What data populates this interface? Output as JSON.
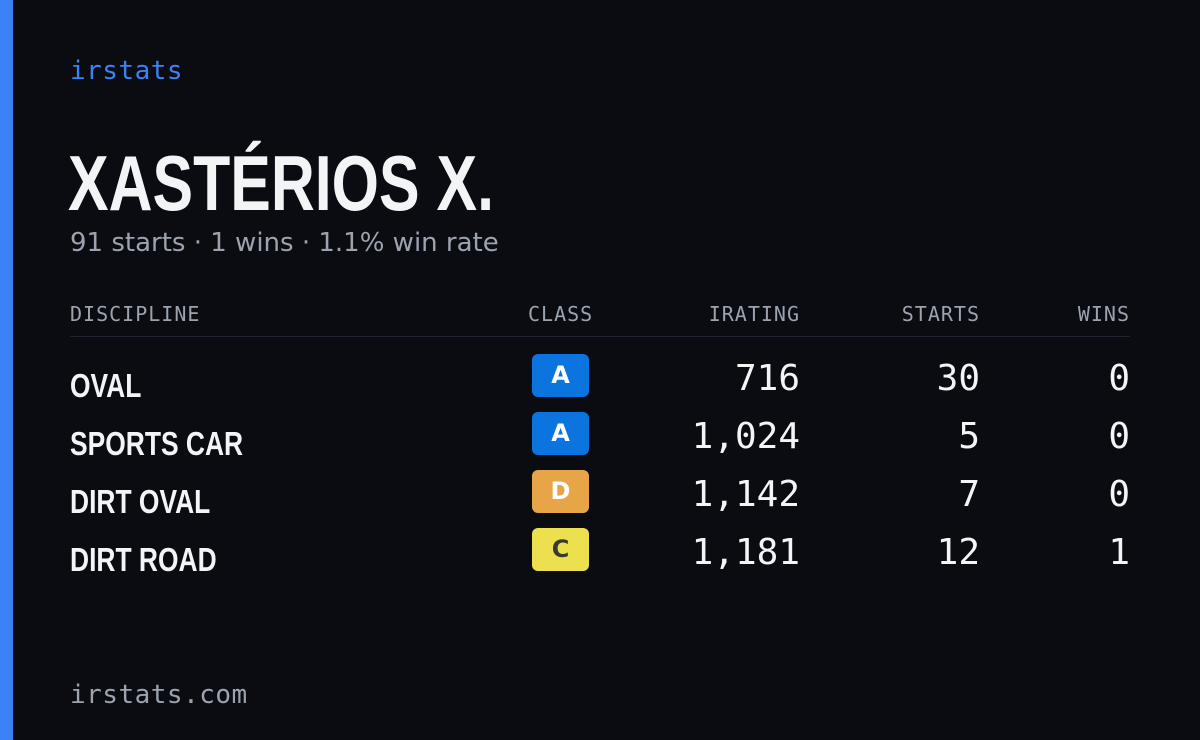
{
  "brand": "irstats",
  "driver": {
    "name": "XASTÉRIOS X.",
    "summary": "91 starts · 1 wins · 1.1% win rate"
  },
  "table": {
    "headers": {
      "discipline": "DISCIPLINE",
      "class": "CLASS",
      "irating": "IRATING",
      "starts": "STARTS",
      "wins": "WINS"
    },
    "rows": [
      {
        "discipline": "OVAL",
        "class": "A",
        "class_color": "#0b74de",
        "class_text_color": "#ffffff",
        "irating": "716",
        "starts": "30",
        "wins": "0"
      },
      {
        "discipline": "SPORTS CAR",
        "class": "A",
        "class_color": "#0b74de",
        "class_text_color": "#ffffff",
        "irating": "1,024",
        "starts": "5",
        "wins": "0"
      },
      {
        "discipline": "DIRT OVAL",
        "class": "D",
        "class_color": "#e8a548",
        "class_text_color": "#ffffff",
        "irating": "1,142",
        "starts": "7",
        "wins": "0"
      },
      {
        "discipline": "DIRT ROAD",
        "class": "C",
        "class_color": "#ede04e",
        "class_text_color": "#3a3a2a",
        "irating": "1,181",
        "starts": "12",
        "wins": "1"
      }
    ]
  },
  "footer": "irstats.com",
  "colors": {
    "background": "#0a0c12",
    "accent": "#3b82f6",
    "muted_text": "#9ca3af",
    "primary_text": "#f3f4f6"
  }
}
